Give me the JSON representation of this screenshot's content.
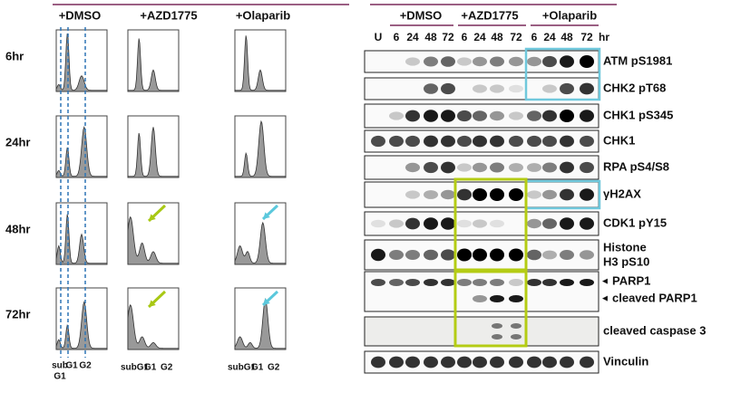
{
  "flow": {
    "columns": [
      "+DMSO",
      "+AZD1775",
      "+Olaparib"
    ],
    "rows": [
      "6hr",
      "24hr",
      "48hr",
      "72hr"
    ],
    "first_column_labels": [
      "sub",
      "G1",
      "G2",
      "G1"
    ],
    "column_labels": [
      "subG1",
      "G1",
      "G2"
    ]
  },
  "blot": {
    "groups": [
      "+DMSO",
      "+AZD1775",
      "+Olaparib"
    ],
    "lanes": [
      "U",
      6,
      24,
      48,
      72,
      6,
      24,
      48,
      72,
      6,
      24,
      48,
      72
    ],
    "unit": "hr",
    "proteins": [
      "ATM pS1981",
      "CHK2 pT68",
      "CHK1 pS345",
      "CHK1",
      "RPA pS4/S8",
      "γH2AX",
      "CDK1 pY15",
      "Histone",
      "H3 pS10",
      "PARP1",
      "cleaved PARP1",
      "cleaved caspase 3",
      "Vinculin"
    ]
  }
}
